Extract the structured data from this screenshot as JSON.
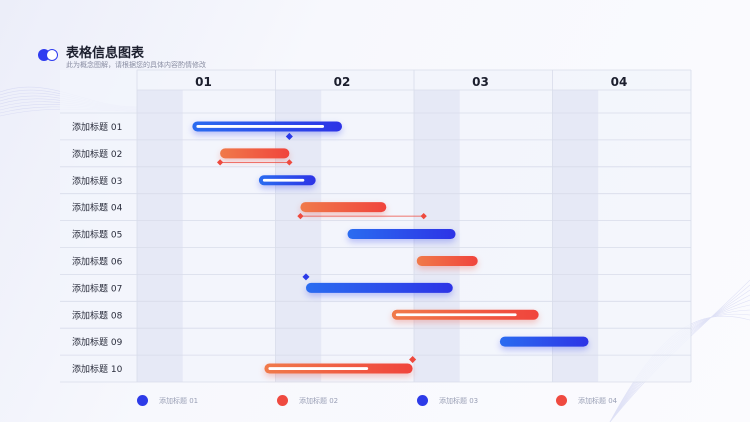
{
  "header": {
    "title": "表格信息图表",
    "subtitle": "此为概念图解，请根据您的具体内容酌情修改"
  },
  "chart_data": {
    "type": "gantt",
    "columns": [
      "01",
      "02",
      "03",
      "04"
    ],
    "xlim": [
      0,
      4
    ],
    "rows": [
      {
        "label": "添加标题 01",
        "start": 0.4,
        "end": 1.48,
        "color": "blue",
        "track": 0.88,
        "marker": 1.1
      },
      {
        "label": "添加标题 02",
        "start": 0.6,
        "end": 1.1,
        "color": "red",
        "range": [
          0.6,
          1.1
        ]
      },
      {
        "label": "添加标题 03",
        "start": 0.88,
        "end": 1.29,
        "color": "blue",
        "track": 0.8
      },
      {
        "label": "添加标题 04",
        "start": 1.18,
        "end": 1.8,
        "color": "red",
        "range": [
          1.18,
          2.07
        ]
      },
      {
        "label": "添加标题 05",
        "start": 1.52,
        "end": 2.3,
        "color": "blue"
      },
      {
        "label": "添加标题 06",
        "start": 2.02,
        "end": 2.46,
        "color": "red"
      },
      {
        "label": "添加标题 07",
        "start": 1.22,
        "end": 2.28,
        "color": "blue",
        "marker_top": 1.22
      },
      {
        "label": "添加标题 08",
        "start": 1.84,
        "end": 2.9,
        "color": "red",
        "track": 0.85
      },
      {
        "label": "添加标题 09",
        "start": 2.62,
        "end": 3.26,
        "color": "blue"
      },
      {
        "label": "添加标题 10",
        "start": 0.92,
        "end": 1.99,
        "color": "red",
        "track": 0.7,
        "marker_end": 1.99
      }
    ],
    "colors": {
      "blue_start": "#2a6cf0",
      "blue_end": "#2d33e6",
      "red_start": "#f07a4a",
      "red_end": "#f0443c",
      "grid": "#d8dcea",
      "band": "#e6e9f6"
    }
  },
  "legend": [
    {
      "label": "添加标题 01",
      "color": "#2d3be8"
    },
    {
      "label": "添加标题 02",
      "color": "#ef4a40"
    },
    {
      "label": "添加标题 03",
      "color": "#2d3be8"
    },
    {
      "label": "添加标题 04",
      "color": "#ef4a40"
    }
  ]
}
